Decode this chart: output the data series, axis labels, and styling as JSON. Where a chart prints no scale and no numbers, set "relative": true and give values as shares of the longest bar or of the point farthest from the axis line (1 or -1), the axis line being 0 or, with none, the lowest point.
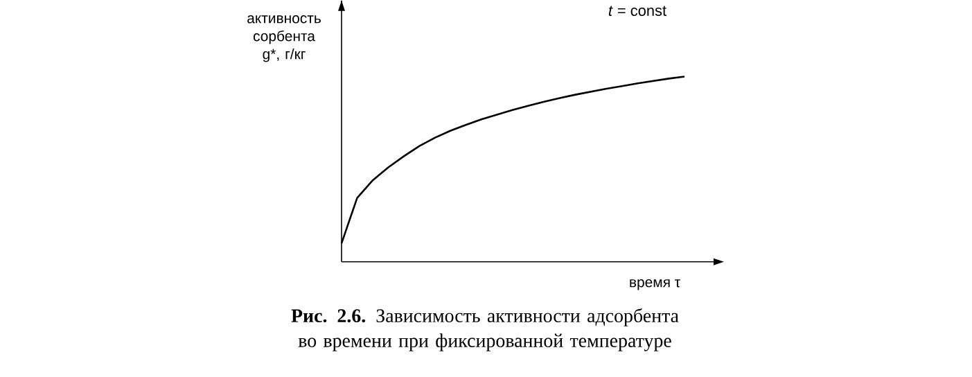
{
  "chart_data": {
    "type": "line",
    "relative": true,
    "title": "**Рис. 2.6.** Зависимость активности адсорбента во времени при фиксированной температуре",
    "xlabel": "время τ",
    "ylabel": "активность сорбента g*, г/кг",
    "annotations": [
      "*t* = const"
    ],
    "color": "#000000",
    "categories": [
      null,
      null,
      null,
      null,
      null,
      null,
      null,
      null,
      null,
      null,
      null,
      null,
      null,
      null,
      null,
      null,
      null,
      null,
      null,
      null,
      null,
      null,
      null
    ],
    "values": [
      0.1,
      0.345,
      0.44,
      0.51,
      0.57,
      0.625,
      0.67,
      0.708,
      0.74,
      0.77,
      0.795,
      0.82,
      0.843,
      0.864,
      0.884,
      0.902,
      0.918,
      0.934,
      0.948,
      0.963,
      0.976,
      0.989,
      1.0
    ]
  }
}
